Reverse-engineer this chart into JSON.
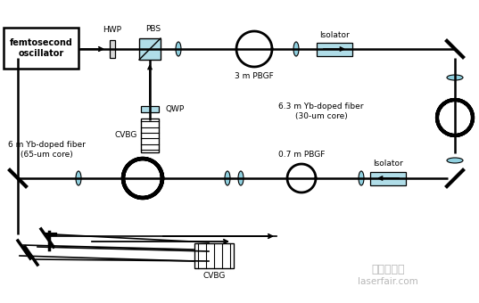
{
  "bg_color": "#ffffff",
  "lb": "#b0dde8",
  "labels": {
    "oscillator": "femtosecond\noscillator",
    "hwp": "HWP",
    "pbs": "PBS",
    "qwp": "QWP",
    "cvbg_top": "CVBG",
    "pbgf_3m": "3 m PBGF",
    "isolator_top": "Isolator",
    "fiber_6_3": "6.3 m Yb-doped fiber\n(30-um core)",
    "fiber_6": "6 m Yb-doped fiber\n(65-um core)",
    "pbgf_07": "0.7 m PBGF",
    "isolator_bot": "Isolator",
    "cvbg_bot": "CVBG",
    "watermark1": "激光制造網",
    "watermark2": "laserfair.com"
  }
}
